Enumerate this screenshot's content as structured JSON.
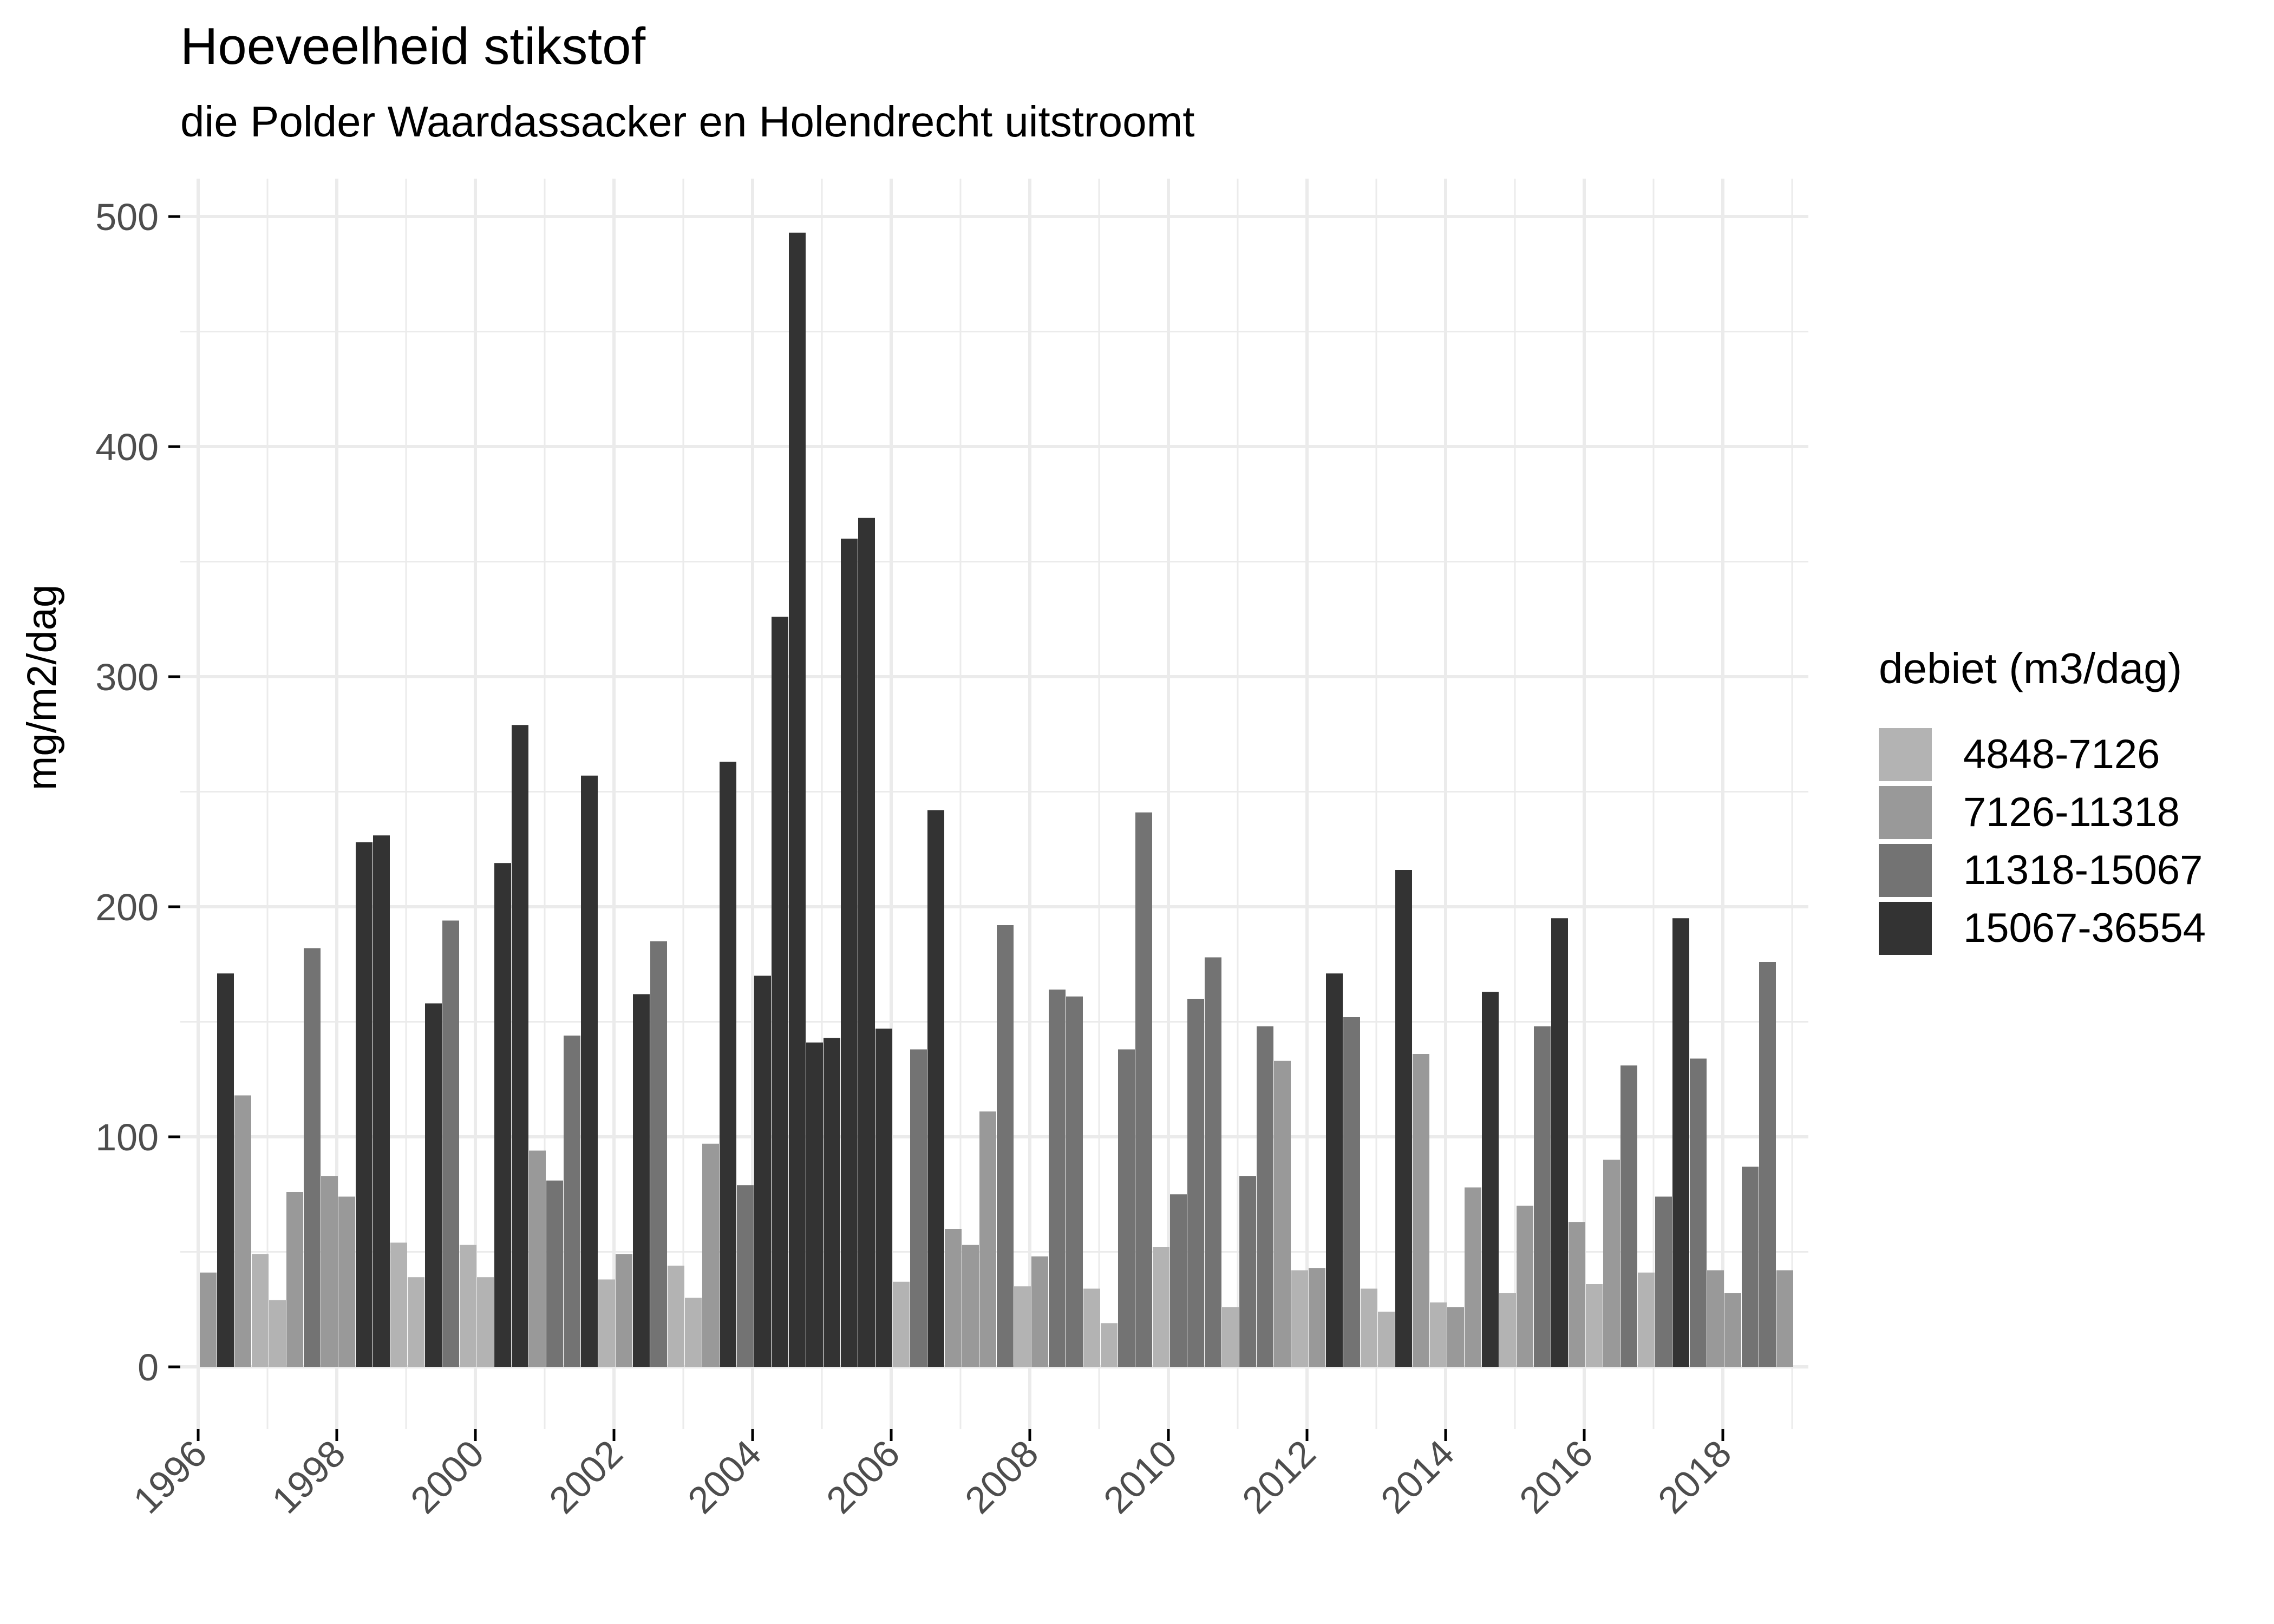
{
  "header": {
    "title": "Hoeveelheid stikstof",
    "subtitle": "die Polder Waardassacker en Holendrecht uitstroomt"
  },
  "legend": {
    "title": "debiet (m3/dag)",
    "items": [
      {
        "label": "4848-7126",
        "color": "#B3B3B3"
      },
      {
        "label": "7126-11318",
        "color": "#999999"
      },
      {
        "label": "11318-15067",
        "color": "#737373"
      },
      {
        "label": "15067-36554",
        "color": "#333333"
      }
    ]
  },
  "chart_data": {
    "type": "bar",
    "title": "Hoeveelheid stikstof",
    "subtitle": "die Polder Waardassacker en Holendrecht uitstroomt",
    "xlabel": "",
    "ylabel": "mg/m2/dag",
    "ylim": [
      0,
      500
    ],
    "yticks": [
      0,
      100,
      200,
      300,
      400,
      500
    ],
    "xticks": [
      "1996",
      "1998",
      "2000",
      "2002",
      "2004",
      "2006",
      "2008",
      "2010",
      "2012",
      "2014",
      "2016",
      "2018"
    ],
    "xlim": [
      1996,
      2019
    ],
    "grid": true,
    "legend_position": "right",
    "legend_title": "debiet (m3/dag)",
    "categories_note": "quarterly periods, 1996 Q1 - 2018 Q4",
    "series_classes": [
      "4848-7126",
      "7126-11318",
      "11318-15067",
      "15067-36554"
    ],
    "bars": [
      {
        "x": "1996-Q1",
        "value": 41,
        "class": "7126-11318"
      },
      {
        "x": "1996-Q2",
        "value": 171,
        "class": "15067-36554"
      },
      {
        "x": "1996-Q3",
        "value": 118,
        "class": "7126-11318"
      },
      {
        "x": "1996-Q4",
        "value": 49,
        "class": "4848-7126"
      },
      {
        "x": "1997-Q1",
        "value": 29,
        "class": "4848-7126"
      },
      {
        "x": "1997-Q2",
        "value": 76,
        "class": "7126-11318"
      },
      {
        "x": "1997-Q3",
        "value": 182,
        "class": "11318-15067"
      },
      {
        "x": "1997-Q4",
        "value": 83,
        "class": "7126-11318"
      },
      {
        "x": "1998-Q1",
        "value": 74,
        "class": "7126-11318"
      },
      {
        "x": "1998-Q2",
        "value": 228,
        "class": "15067-36554"
      },
      {
        "x": "1998-Q3",
        "value": 231,
        "class": "15067-36554"
      },
      {
        "x": "1998-Q4",
        "value": 54,
        "class": "4848-7126"
      },
      {
        "x": "1999-Q1",
        "value": 39,
        "class": "4848-7126"
      },
      {
        "x": "1999-Q2",
        "value": 158,
        "class": "15067-36554"
      },
      {
        "x": "1999-Q3",
        "value": 194,
        "class": "11318-15067"
      },
      {
        "x": "1999-Q4",
        "value": 53,
        "class": "4848-7126"
      },
      {
        "x": "2000-Q1",
        "value": 39,
        "class": "4848-7126"
      },
      {
        "x": "2000-Q2",
        "value": 219,
        "class": "15067-36554"
      },
      {
        "x": "2000-Q3",
        "value": 279,
        "class": "15067-36554"
      },
      {
        "x": "2000-Q4",
        "value": 94,
        "class": "7126-11318"
      },
      {
        "x": "2001-Q1",
        "value": 81,
        "class": "11318-15067"
      },
      {
        "x": "2001-Q2",
        "value": 144,
        "class": "11318-15067"
      },
      {
        "x": "2001-Q3",
        "value": 257,
        "class": "15067-36554"
      },
      {
        "x": "2001-Q4",
        "value": 38,
        "class": "4848-7126"
      },
      {
        "x": "2002-Q1",
        "value": 49,
        "class": "7126-11318"
      },
      {
        "x": "2002-Q2",
        "value": 162,
        "class": "15067-36554"
      },
      {
        "x": "2002-Q3",
        "value": 185,
        "class": "11318-15067"
      },
      {
        "x": "2002-Q4",
        "value": 44,
        "class": "4848-7126"
      },
      {
        "x": "2003-Q1",
        "value": 30,
        "class": "4848-7126"
      },
      {
        "x": "2003-Q2",
        "value": 97,
        "class": "7126-11318"
      },
      {
        "x": "2003-Q3",
        "value": 263,
        "class": "15067-36554"
      },
      {
        "x": "2003-Q4",
        "value": 79,
        "class": "11318-15067"
      },
      {
        "x": "2004-Q1",
        "value": 170,
        "class": "15067-36554"
      },
      {
        "x": "2004-Q2",
        "value": 326,
        "class": "15067-36554"
      },
      {
        "x": "2004-Q3",
        "value": 493,
        "class": "15067-36554"
      },
      {
        "x": "2004-Q4",
        "value": 141,
        "class": "15067-36554"
      },
      {
        "x": "2005-Q1",
        "value": 143,
        "class": "15067-36554"
      },
      {
        "x": "2005-Q2",
        "value": 360,
        "class": "15067-36554"
      },
      {
        "x": "2005-Q3",
        "value": 369,
        "class": "15067-36554"
      },
      {
        "x": "2005-Q4",
        "value": 147,
        "class": "15067-36554"
      },
      {
        "x": "2006-Q1",
        "value": 37,
        "class": "4848-7126"
      },
      {
        "x": "2006-Q2",
        "value": 138,
        "class": "11318-15067"
      },
      {
        "x": "2006-Q3",
        "value": 242,
        "class": "15067-36554"
      },
      {
        "x": "2006-Q4",
        "value": 60,
        "class": "7126-11318"
      },
      {
        "x": "2007-Q1",
        "value": 53,
        "class": "7126-11318"
      },
      {
        "x": "2007-Q2",
        "value": 111,
        "class": "7126-11318"
      },
      {
        "x": "2007-Q3",
        "value": 192,
        "class": "11318-15067"
      },
      {
        "x": "2007-Q4",
        "value": 35,
        "class": "4848-7126"
      },
      {
        "x": "2008-Q1",
        "value": 48,
        "class": "7126-11318"
      },
      {
        "x": "2008-Q2",
        "value": 164,
        "class": "11318-15067"
      },
      {
        "x": "2008-Q3",
        "value": 161,
        "class": "11318-15067"
      },
      {
        "x": "2008-Q4",
        "value": 34,
        "class": "4848-7126"
      },
      {
        "x": "2009-Q1",
        "value": 19,
        "class": "4848-7126"
      },
      {
        "x": "2009-Q2",
        "value": 138,
        "class": "11318-15067"
      },
      {
        "x": "2009-Q3",
        "value": 241,
        "class": "11318-15067"
      },
      {
        "x": "2009-Q4",
        "value": 52,
        "class": "4848-7126"
      },
      {
        "x": "2010-Q1",
        "value": 75,
        "class": "11318-15067"
      },
      {
        "x": "2010-Q2",
        "value": 160,
        "class": "11318-15067"
      },
      {
        "x": "2010-Q3",
        "value": 178,
        "class": "11318-15067"
      },
      {
        "x": "2010-Q4",
        "value": 26,
        "class": "4848-7126"
      },
      {
        "x": "2011-Q1",
        "value": 83,
        "class": "11318-15067"
      },
      {
        "x": "2011-Q2",
        "value": 148,
        "class": "11318-15067"
      },
      {
        "x": "2011-Q3",
        "value": 133,
        "class": "7126-11318"
      },
      {
        "x": "2011-Q4",
        "value": 42,
        "class": "4848-7126"
      },
      {
        "x": "2012-Q1",
        "value": 43,
        "class": "7126-11318"
      },
      {
        "x": "2012-Q2",
        "value": 171,
        "class": "15067-36554"
      },
      {
        "x": "2012-Q3",
        "value": 152,
        "class": "11318-15067"
      },
      {
        "x": "2012-Q4",
        "value": 34,
        "class": "4848-7126"
      },
      {
        "x": "2013-Q1",
        "value": 24,
        "class": "4848-7126"
      },
      {
        "x": "2013-Q2",
        "value": 216,
        "class": "15067-36554"
      },
      {
        "x": "2013-Q3",
        "value": 136,
        "class": "7126-11318"
      },
      {
        "x": "2013-Q4",
        "value": 28,
        "class": "4848-7126"
      },
      {
        "x": "2014-Q1",
        "value": 26,
        "class": "7126-11318"
      },
      {
        "x": "2014-Q2",
        "value": 78,
        "class": "7126-11318"
      },
      {
        "x": "2014-Q3",
        "value": 163,
        "class": "15067-36554"
      },
      {
        "x": "2014-Q4",
        "value": 32,
        "class": "4848-7126"
      },
      {
        "x": "2015-Q1",
        "value": 70,
        "class": "7126-11318"
      },
      {
        "x": "2015-Q2",
        "value": 148,
        "class": "11318-15067"
      },
      {
        "x": "2015-Q3",
        "value": 195,
        "class": "15067-36554"
      },
      {
        "x": "2015-Q4",
        "value": 63,
        "class": "7126-11318"
      },
      {
        "x": "2016-Q1",
        "value": 36,
        "class": "4848-7126"
      },
      {
        "x": "2016-Q2",
        "value": 90,
        "class": "7126-11318"
      },
      {
        "x": "2016-Q3",
        "value": 131,
        "class": "11318-15067"
      },
      {
        "x": "2016-Q4",
        "value": 41,
        "class": "4848-7126"
      },
      {
        "x": "2017-Q1",
        "value": 74,
        "class": "11318-15067"
      },
      {
        "x": "2017-Q2",
        "value": 195,
        "class": "15067-36554"
      },
      {
        "x": "2017-Q3",
        "value": 134,
        "class": "11318-15067"
      },
      {
        "x": "2017-Q4",
        "value": 42,
        "class": "7126-11318"
      },
      {
        "x": "2018-Q1",
        "value": 32,
        "class": "7126-11318"
      },
      {
        "x": "2018-Q2",
        "value": 87,
        "class": "11318-15067"
      },
      {
        "x": "2018-Q3",
        "value": 176,
        "class": "11318-15067"
      },
      {
        "x": "2018-Q4",
        "value": 42,
        "class": "7126-11318"
      }
    ]
  }
}
